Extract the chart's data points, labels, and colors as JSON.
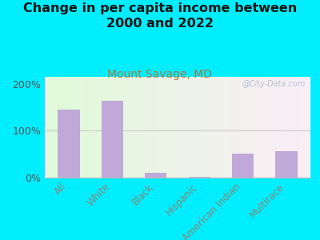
{
  "title": "Change in per capita income between\n2000 and 2022",
  "subtitle": "Mount Savage, MD",
  "categories": [
    "All",
    "White",
    "Black",
    "Hispanic",
    "American Indian",
    "Multirace"
  ],
  "values": [
    145,
    163,
    10,
    2,
    52,
    57
  ],
  "bar_color": "#c0a8d8",
  "background_outer": "#00eeff",
  "title_fontsize": 11.5,
  "title_color": "#111111",
  "subtitle_fontsize": 10,
  "subtitle_color": "#aa7744",
  "ylabel_ticks": [
    "0%",
    "100%",
    "200%"
  ],
  "ytick_values": [
    0,
    100,
    200
  ],
  "ylim": [
    0,
    215
  ],
  "watermark": "@City-Data.com",
  "watermark_color": "#aabbcc",
  "tick_color": "#888877",
  "tick_fontsize": 8.5,
  "ytick_fontsize": 9
}
